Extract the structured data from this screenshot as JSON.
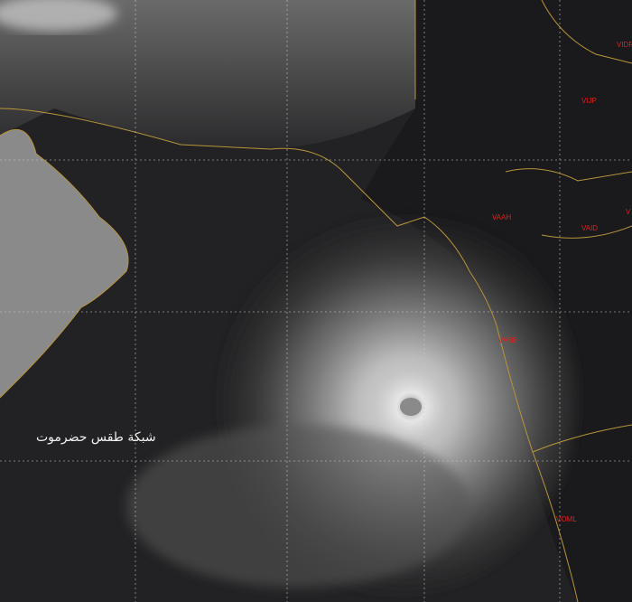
{
  "watermark": "شبكة طقس حضرموت",
  "stations": [
    {
      "code": "VIDP"
    },
    {
      "code": "VIJP"
    },
    {
      "code": "VAAH"
    },
    {
      "code": "VAID"
    },
    {
      "code": "VABB"
    },
    {
      "code": "VOML"
    },
    {
      "code": "V"
    }
  ],
  "colors": {
    "label": "#e02020",
    "border": "#b8953a",
    "grid": "#cccccc"
  }
}
